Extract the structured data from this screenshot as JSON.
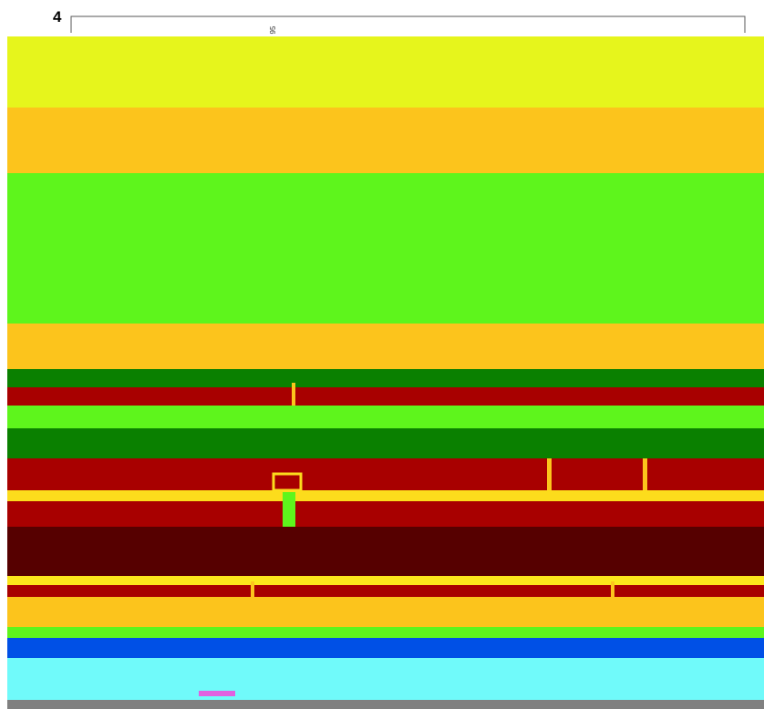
{
  "header": {
    "number": "4",
    "label": "95"
  }
}
